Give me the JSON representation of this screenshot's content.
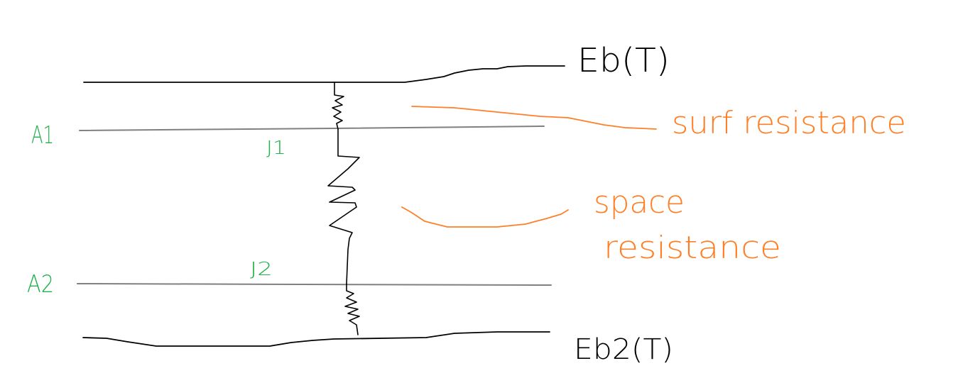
{
  "labels": {
    "eb1": "Eb(T)",
    "eb2": "Eb2(T)",
    "a1": "A1",
    "a2": "A2",
    "j1": "J1",
    "j2": "J2",
    "surface_resistance": "surf resistance",
    "space_resistance_line1": "space",
    "space_resistance_line2": "resistance"
  },
  "colors": {
    "ink": "#000000",
    "plate": "#808080",
    "annotation": "#ff7f27",
    "node": "#22b14c",
    "background": "#ffffff"
  }
}
